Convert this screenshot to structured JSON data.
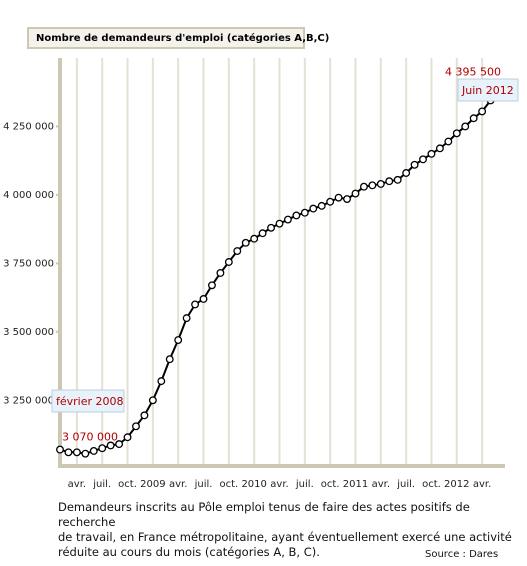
{
  "chart_data": {
    "type": "line",
    "title": "Nombre de demandeurs d'emploi (catégories A,B,C)",
    "categories": [
      null,
      null,
      "avr.",
      null,
      null,
      "juil.",
      null,
      null,
      "oct.",
      null,
      null,
      "2009",
      null,
      null,
      "avr.",
      null,
      null,
      "juil.",
      null,
      null,
      "oct.",
      null,
      null,
      "2010",
      null,
      null,
      "avr.",
      null,
      null,
      "juil.",
      null,
      null,
      "oct.",
      null,
      null,
      "2011",
      null,
      null,
      "avr.",
      null,
      null,
      "juil.",
      null,
      null,
      "oct.",
      null,
      null,
      "2012",
      null,
      null,
      "avr.",
      null,
      null
    ],
    "series": [
      {
        "name": "Demandeurs d'emploi",
        "color": "#000000",
        "values": [
          3070000,
          3060000,
          3060000,
          3055000,
          3065000,
          3075000,
          3085000,
          3090000,
          3115000,
          3155000,
          3195000,
          3250000,
          3320000,
          3400000,
          3470000,
          3550000,
          3600000,
          3620000,
          3670000,
          3715000,
          3755000,
          3795000,
          3825000,
          3840000,
          3860000,
          3880000,
          3895000,
          3910000,
          3925000,
          3935000,
          3950000,
          3960000,
          3975000,
          3990000,
          3985000,
          4005000,
          4030000,
          4035000,
          4040000,
          4050000,
          4055000,
          4080000,
          4110000,
          4130000,
          4150000,
          4170000,
          4195000,
          4225000,
          4250000,
          4280000,
          4305000,
          4345000,
          4395500
        ],
        "value_labels": [
          "3 070 000",
          null,
          null,
          null,
          null,
          null,
          null,
          null,
          null,
          null,
          null,
          null,
          null,
          null,
          null,
          null,
          null,
          null,
          null,
          null,
          null,
          null,
          null,
          null,
          null,
          null,
          null,
          null,
          null,
          null,
          null,
          null,
          null,
          null,
          null,
          null,
          null,
          null,
          null,
          null,
          null,
          null,
          null,
          null,
          null,
          null,
          null,
          null,
          null,
          null,
          null,
          null,
          "4 395 500"
        ]
      }
    ],
    "annotations": [
      {
        "text": "février 2008",
        "index": 0
      },
      {
        "text": "Juin 2012",
        "index": 52
      }
    ],
    "ylim": [
      3010000,
      4500000
    ],
    "yticks": [
      {
        "value": 3250000,
        "label": "3 250 000"
      },
      {
        "value": 3500000,
        "label": "3 500 000"
      },
      {
        "value": 3750000,
        "label": "3 750 000"
      },
      {
        "value": 4000000,
        "label": "4 000 000"
      },
      {
        "value": 4250000,
        "label": "4 250 000"
      }
    ],
    "grid": true,
    "caption": [
      "Demandeurs inscrits au Pôle emploi tenus de faire des actes positifs de recherche",
      "de travail, en France métropolitaine, ayant éventuellement exercé une activité",
      "réduite au cours du mois (catégories A, B, C)."
    ],
    "source": "Source :  Dares"
  }
}
